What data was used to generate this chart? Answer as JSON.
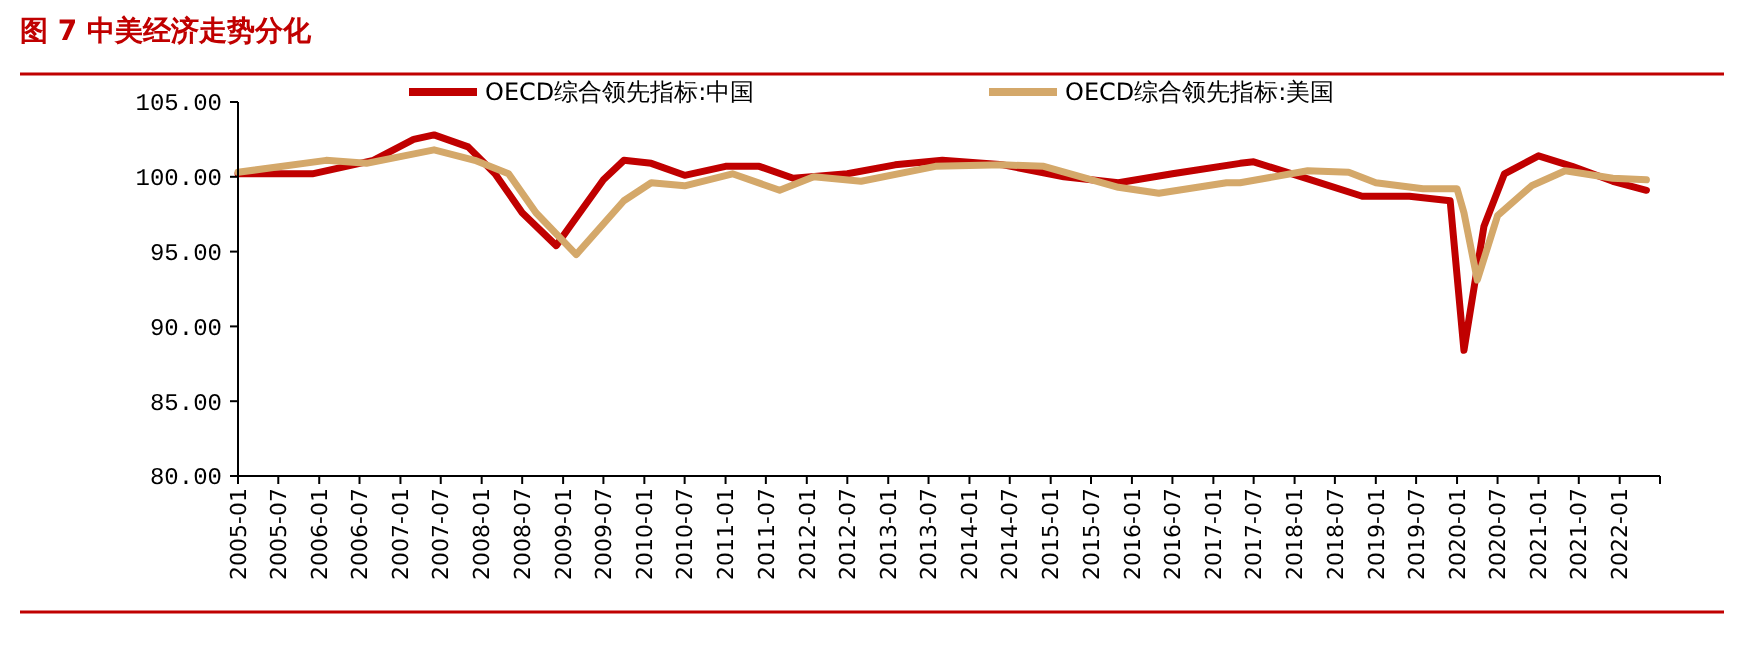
{
  "chart_data": {
    "type": "line",
    "title": "图 7  中美经济走势分化",
    "series": [
      {
        "name": "OECD综合领先指标:中国",
        "color": "#c00000",
        "x": [
          "2005-01",
          "2005-12",
          "2006-09",
          "2007-03",
          "2007-06",
          "2007-11",
          "2008-03",
          "2008-07",
          "2008-12",
          "2009-02",
          "2009-07",
          "2009-10",
          "2010-02",
          "2010-07",
          "2011-01",
          "2011-06",
          "2011-11",
          "2012-07",
          "2013-02",
          "2013-09",
          "2014-06",
          "2015-03",
          "2015-11",
          "2016-07",
          "2017-05",
          "2017-07",
          "2018-02",
          "2018-11",
          "2019-06",
          "2019-12",
          "2020-02",
          "2020-05",
          "2020-08",
          "2021-01",
          "2021-06",
          "2021-12",
          "2022-05"
        ],
        "values": [
          100.2,
          100.2,
          101.1,
          102.5,
          102.8,
          102.0,
          100.2,
          97.6,
          95.4,
          96.7,
          99.8,
          101.1,
          100.9,
          100.1,
          100.7,
          100.7,
          99.9,
          100.2,
          100.8,
          101.1,
          100.8,
          100.0,
          99.6,
          100.2,
          100.9,
          101.0,
          100.0,
          98.7,
          98.7,
          98.4,
          88.4,
          96.7,
          100.2,
          101.4,
          100.7,
          99.7,
          99.1
        ]
      },
      {
        "name": "OECD综合领先指标:美国",
        "color": "#d4a86a",
        "x": [
          "2005-01",
          "2006-02",
          "2006-08",
          "2007-06",
          "2007-12",
          "2008-05",
          "2008-09",
          "2009-03",
          "2009-10",
          "2010-02",
          "2010-07",
          "2011-02",
          "2011-09",
          "2012-02",
          "2012-09",
          "2013-08",
          "2014-06",
          "2014-12",
          "2015-11",
          "2016-05",
          "2017-03",
          "2017-05",
          "2018-03",
          "2018-09",
          "2019-01",
          "2019-08",
          "2020-01",
          "2020-02",
          "2020-04",
          "2020-07",
          "2020-12",
          "2021-05",
          "2021-12",
          "2022-05"
        ],
        "values": [
          100.3,
          101.1,
          100.9,
          101.8,
          101.1,
          100.2,
          97.6,
          94.8,
          98.4,
          99.6,
          99.4,
          100.2,
          99.1,
          100.0,
          99.7,
          100.7,
          100.8,
          100.7,
          99.3,
          98.9,
          99.6,
          99.6,
          100.4,
          100.3,
          99.6,
          99.2,
          99.2,
          97.6,
          93.1,
          97.4,
          99.4,
          100.4,
          99.9,
          99.8
        ]
      }
    ],
    "xlim": [
      "2005-01",
      "2022-07"
    ],
    "xticks": [
      "2005-01",
      "2005-07",
      "2006-01",
      "2006-07",
      "2007-01",
      "2007-07",
      "2008-01",
      "2008-07",
      "2009-01",
      "2009-07",
      "2010-01",
      "2010-07",
      "2011-01",
      "2011-07",
      "2012-01",
      "2012-07",
      "2013-01",
      "2013-07",
      "2014-01",
      "2014-07",
      "2015-01",
      "2015-07",
      "2016-01",
      "2016-07",
      "2017-01",
      "2017-07",
      "2018-01",
      "2018-07",
      "2019-01",
      "2019-07",
      "2020-01",
      "2020-07",
      "2021-01",
      "2021-07",
      "2022-01"
    ],
    "ylim": [
      80,
      105
    ],
    "yticks": [
      {
        "value": 80,
        "label": "80.00"
      },
      {
        "value": 85,
        "label": "85.00"
      },
      {
        "value": 90,
        "label": "90.00"
      },
      {
        "value": 95,
        "label": "95.00"
      },
      {
        "value": 100,
        "label": "100.00"
      },
      {
        "value": 105,
        "label": "105.00"
      }
    ],
    "grid": false,
    "legend": "top",
    "marker": "none",
    "line_style": "solid"
  }
}
